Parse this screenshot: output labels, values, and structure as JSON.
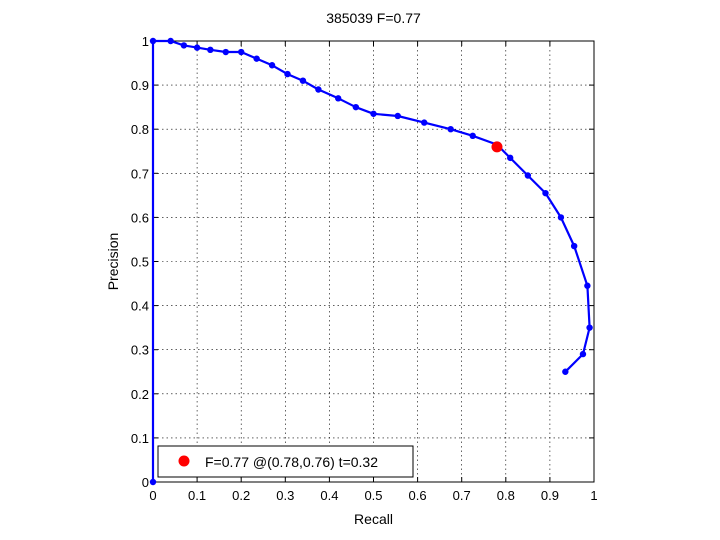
{
  "chart_data": {
    "type": "line",
    "title": "385039 F=0.77",
    "xlabel": "Recall",
    "ylabel": "Precision",
    "xlim": [
      0,
      1
    ],
    "ylim": [
      0,
      1
    ],
    "grid": true,
    "xticks": [
      "0",
      "0.1",
      "0.2",
      "0.3",
      "0.4",
      "0.5",
      "0.6",
      "0.7",
      "0.8",
      "0.9",
      "1"
    ],
    "yticks": [
      "0",
      "0.1",
      "0.2",
      "0.3",
      "0.4",
      "0.5",
      "0.6",
      "0.7",
      "0.8",
      "0.9",
      "1"
    ],
    "colors": {
      "curve": "#0000ff",
      "best": "#ff0000",
      "grid": "#000000"
    },
    "series": [
      {
        "x": [
          0,
          0,
          0.04,
          0.07,
          0.1,
          0.13,
          0.165,
          0.2,
          0.235,
          0.27,
          0.305,
          0.34,
          0.375,
          0.42,
          0.46,
          0.5,
          0.555,
          0.615,
          0.675,
          0.725,
          0.78,
          0.81,
          0.85,
          0.89,
          0.925,
          0.955,
          0.985,
          0.99,
          0.975,
          0.935
        ],
        "y": [
          0,
          1,
          1,
          0.99,
          0.985,
          0.98,
          0.975,
          0.975,
          0.96,
          0.945,
          0.925,
          0.91,
          0.89,
          0.87,
          0.85,
          0.835,
          0.83,
          0.815,
          0.8,
          0.785,
          0.765,
          0.735,
          0.695,
          0.655,
          0.6,
          0.535,
          0.445,
          0.35,
          0.29,
          0.25
        ]
      }
    ],
    "best_point": {
      "recall": 0.78,
      "precision": 0.76
    },
    "legend": {
      "text": "F=0.77 @(0.78,0.76) t=0.32",
      "location": "bottom-left"
    }
  }
}
